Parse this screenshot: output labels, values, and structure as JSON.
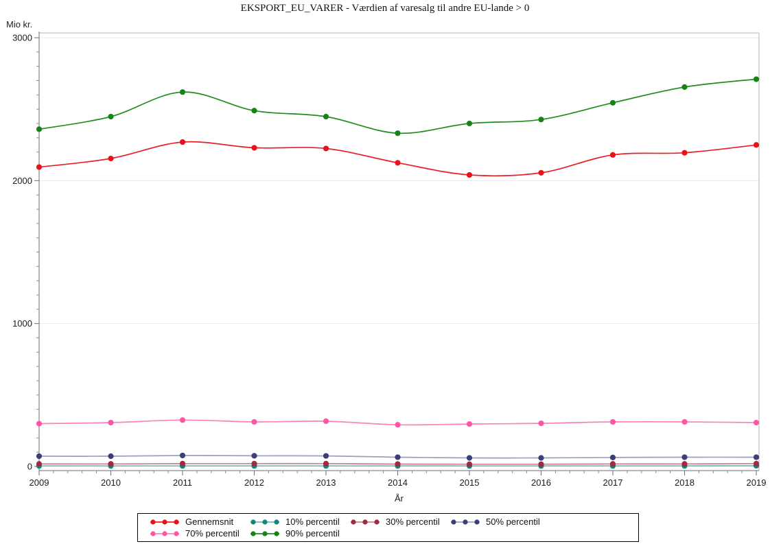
{
  "title": "EKSPORT_EU_VARER - Værdien af varesalg til andre EU-lande > 0",
  "chart_data": {
    "type": "line",
    "title": "EKSPORT_EU_VARER - Værdien af varesalg til andre EU-lande > 0",
    "xlabel": "År",
    "ylabel": "Mio kr.",
    "x": [
      2009,
      2010,
      2011,
      2012,
      2013,
      2014,
      2015,
      2016,
      2017,
      2018,
      2019
    ],
    "ylim": [
      0,
      3000
    ],
    "yticks": [
      0,
      1000,
      2000,
      3000
    ],
    "y_minor_step": 100,
    "x_minor_divisions": 5,
    "grid": "horizontal-major-only",
    "legend_position": "bottom",
    "series": [
      {
        "name": "Gennemsnit",
        "color": "#e8121c",
        "line_opacity": 0.95,
        "values": [
          2095,
          2155,
          2270,
          2230,
          2225,
          2125,
          2040,
          2055,
          2180,
          2195,
          2250
        ]
      },
      {
        "name": "10% percentil",
        "color": "#12857c",
        "line_opacity": 0.6,
        "values": [
          4,
          4,
          4,
          4,
          4,
          4,
          4,
          4,
          4,
          4,
          5
        ]
      },
      {
        "name": "30% percentil",
        "color": "#9e2b3f",
        "line_opacity": 0.6,
        "values": [
          18,
          18,
          20,
          20,
          20,
          17,
          16,
          16,
          18,
          18,
          20
        ]
      },
      {
        "name": "50% percentil",
        "color": "#3b3f77",
        "line_opacity": 0.5,
        "values": [
          72,
          72,
          77,
          75,
          74,
          65,
          60,
          60,
          63,
          65,
          65
        ]
      },
      {
        "name": "70% percentil",
        "color": "#ff55a5",
        "line_opacity": 0.75,
        "values": [
          300,
          307,
          325,
          312,
          317,
          292,
          297,
          302,
          312,
          312,
          307
        ]
      },
      {
        "name": "90% percentil",
        "color": "#148514",
        "line_opacity": 0.95,
        "values": [
          2360,
          2448,
          2620,
          2490,
          2448,
          2332,
          2400,
          2428,
          2545,
          2655,
          2710
        ]
      }
    ]
  }
}
